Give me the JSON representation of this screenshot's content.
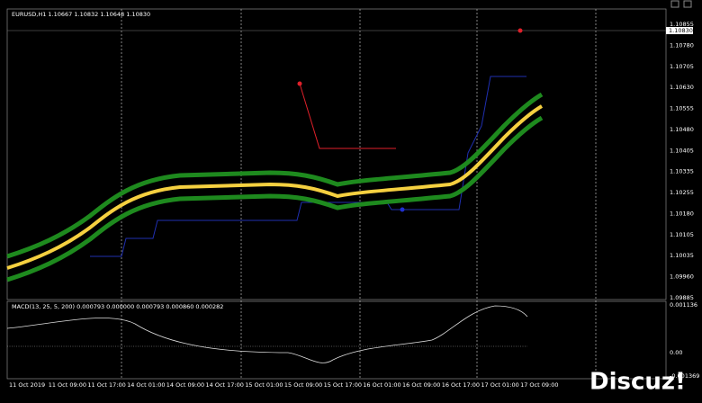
{
  "header": {
    "title": "EURUSD,H1  1.10667 1.10832 1.10648 1.10830"
  },
  "price_axis": {
    "current_price": "1.10830",
    "labels": [
      "1.10855",
      "1.10780",
      "1.10705",
      "1.10630",
      "1.10555",
      "1.10480",
      "1.10405",
      "1.10335",
      "1.10255",
      "1.10180",
      "1.10105",
      "1.10035",
      "1.09960",
      "1.09885"
    ]
  },
  "macd_panel": {
    "title": "MACD(13, 25, 5, 200) 0.000793 0.000000 0.000793 0.000860 0.000282",
    "axis_labels": [
      "0.001136",
      "0.00",
      "-0.001369"
    ]
  },
  "time_axis": {
    "labels": [
      "11 Oct 2019",
      "11 Oct 09:00",
      "11 Oct 17:00",
      "14 Oct 01:00",
      "14 Oct 09:00",
      "14 Oct 17:00",
      "15 Oct 01:00",
      "15 Oct 09:00",
      "15 Oct 17:00",
      "16 Oct 01:00",
      "16 Oct 09:00",
      "16 Oct 17:00",
      "17 Oct 01:00",
      "17 Oct 09:00"
    ]
  },
  "watermark": "Discuz!"
}
